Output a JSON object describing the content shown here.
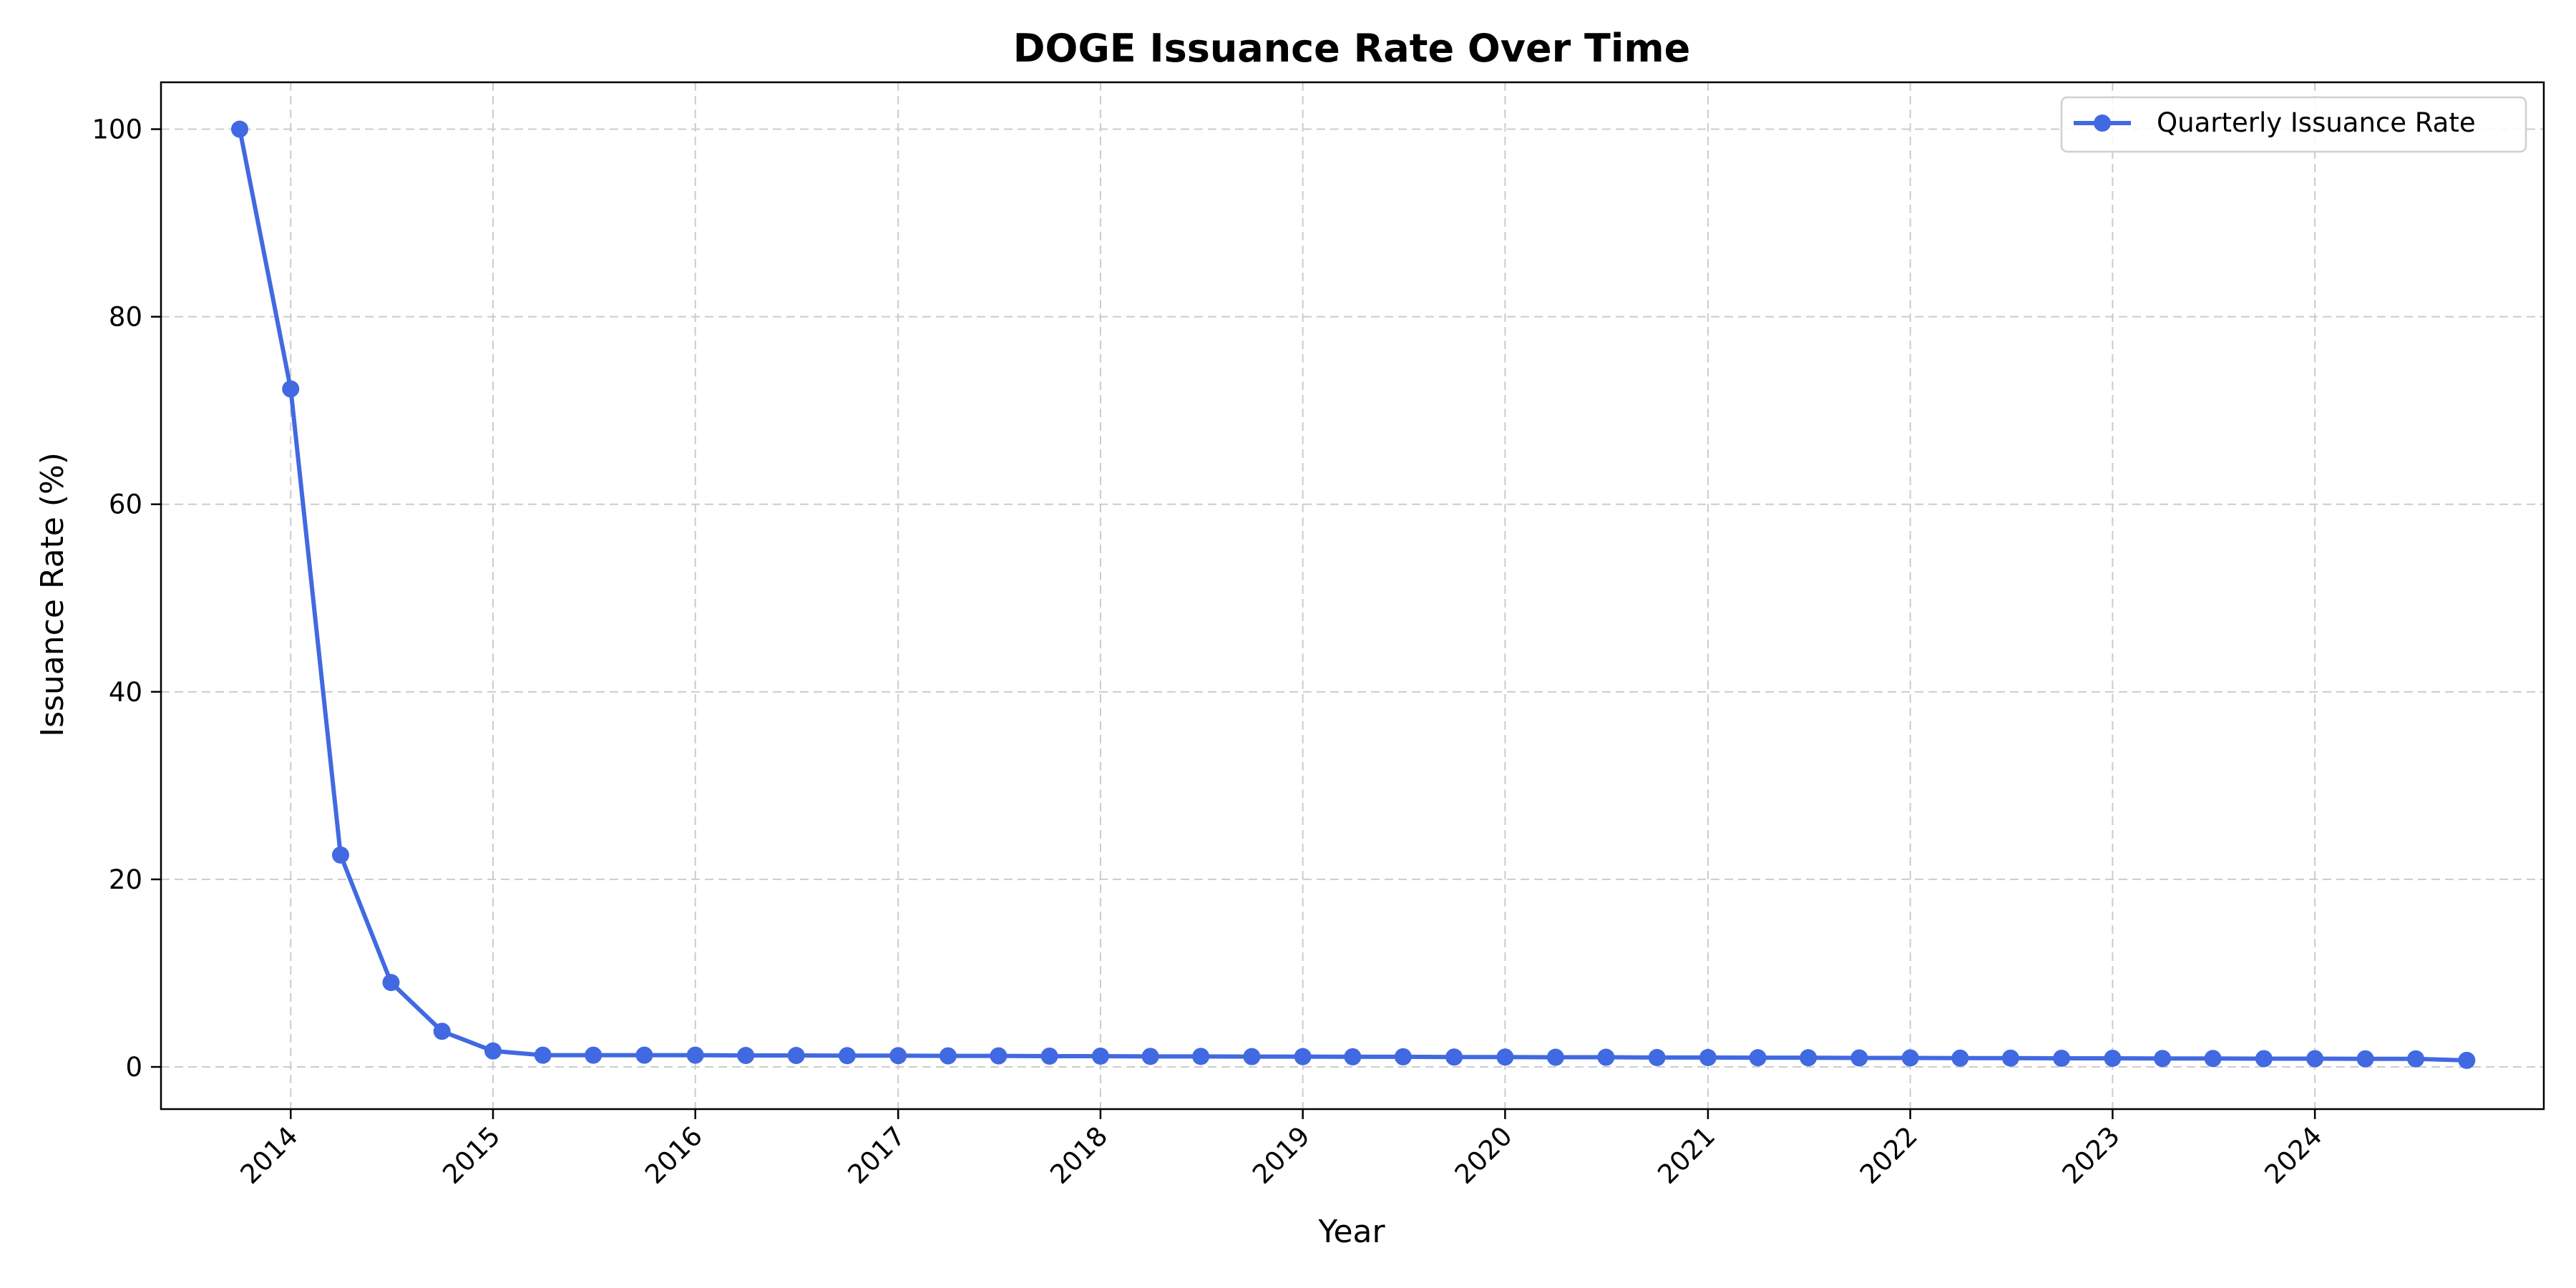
{
  "chart_data": {
    "type": "line",
    "title": "DOGE Issuance Rate Over Time",
    "xlabel": "Year",
    "ylabel": "Issuance Rate (%)",
    "xlim": [
      "2013-05-12",
      "2025-02-17"
    ],
    "ylim": [
      -4.5,
      105
    ],
    "x_ticks": [
      "2014",
      "2015",
      "2016",
      "2017",
      "2018",
      "2019",
      "2020",
      "2021",
      "2022",
      "2023",
      "2024"
    ],
    "y_ticks": [
      0,
      20,
      40,
      60,
      80,
      100
    ],
    "grid": true,
    "legend_position": "top-right",
    "series": [
      {
        "name": "Quarterly Issuance Rate",
        "color": "#4169e1",
        "x": [
          "2013-10-01",
          "2014-01-01",
          "2014-04-01",
          "2014-07-01",
          "2014-10-01",
          "2015-01-01",
          "2015-04-01",
          "2015-07-01",
          "2015-10-01",
          "2016-01-01",
          "2016-04-01",
          "2016-07-01",
          "2016-10-01",
          "2017-01-01",
          "2017-04-01",
          "2017-07-01",
          "2017-10-01",
          "2018-01-01",
          "2018-04-01",
          "2018-07-01",
          "2018-10-01",
          "2019-01-01",
          "2019-04-01",
          "2019-07-01",
          "2019-10-01",
          "2020-01-01",
          "2020-04-01",
          "2020-07-01",
          "2020-10-01",
          "2021-01-01",
          "2021-04-01",
          "2021-07-01",
          "2021-10-01",
          "2022-01-01",
          "2022-04-01",
          "2022-07-01",
          "2022-10-01",
          "2023-01-01",
          "2023-04-01",
          "2023-07-01",
          "2023-10-01",
          "2024-01-01",
          "2024-04-01",
          "2024-07-01",
          "2024-10-01"
        ],
        "values": [
          100,
          72.3,
          22.6,
          9.0,
          3.8,
          1.7,
          1.25,
          1.25,
          1.25,
          1.25,
          1.22,
          1.22,
          1.2,
          1.2,
          1.18,
          1.18,
          1.15,
          1.15,
          1.12,
          1.12,
          1.1,
          1.1,
          1.08,
          1.08,
          1.05,
          1.05,
          1.03,
          1.03,
          1.0,
          1.0,
          0.98,
          0.98,
          0.96,
          0.96,
          0.94,
          0.94,
          0.92,
          0.92,
          0.9,
          0.9,
          0.88,
          0.88,
          0.86,
          0.86,
          0.7
        ]
      }
    ]
  }
}
